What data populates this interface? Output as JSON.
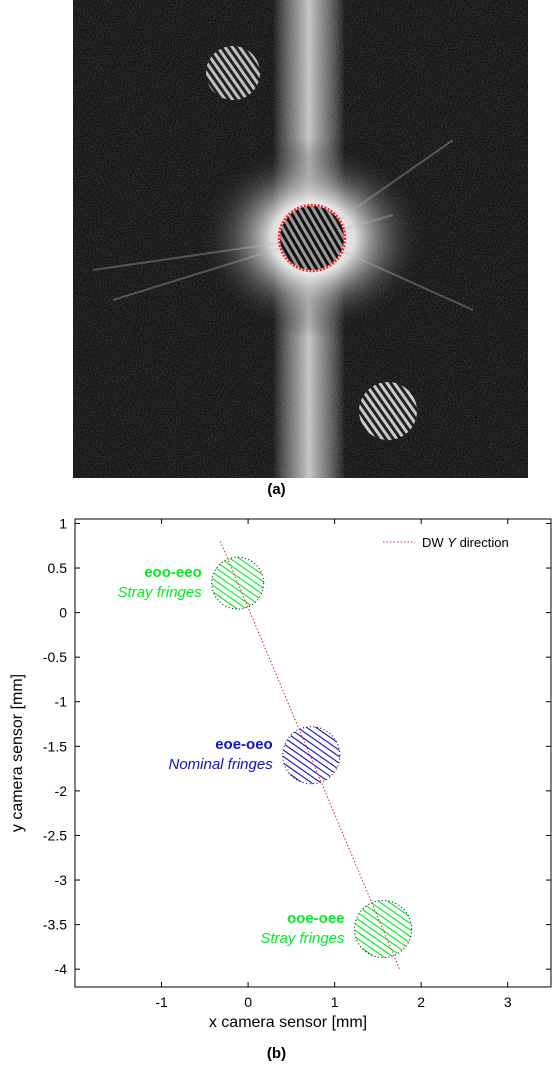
{
  "panel_a": {
    "label": "(a)"
  },
  "panel_b": {
    "label": "(b)"
  },
  "chart_data": {
    "type": "scatter",
    "xlabel": "x camera sensor [mm]",
    "ylabel": "y camera sensor [mm]",
    "xlim": [
      -2,
      3.5
    ],
    "ylim": [
      -4.2,
      1.05
    ],
    "xticks": [
      -1,
      0,
      1,
      2,
      3
    ],
    "yticks": [
      1,
      0.5,
      0,
      -0.5,
      -1,
      -1.5,
      -2,
      -2.5,
      -3,
      -3.5,
      -4
    ],
    "legend": {
      "position": "top-right",
      "entry_prefix": "DW ",
      "entry_italic": "Y",
      "entry_suffix": " direction",
      "color": "#e0202a"
    },
    "dw_line": {
      "x": [
        -0.32,
        1.75
      ],
      "y": [
        0.8,
        -4.0
      ]
    },
    "spots": [
      {
        "name": "eoo-eeo",
        "caption": "Stray fringes",
        "x": -0.12,
        "y": 0.33,
        "r": 0.3,
        "color": "#00ee22"
      },
      {
        "name": "eoe-oeo",
        "caption": "Nominal fringes",
        "x": 0.73,
        "y": -1.6,
        "r": 0.33,
        "color": "#1010cc"
      },
      {
        "name": "ooe-oee",
        "caption": "Stray fringes",
        "x": 1.56,
        "y": -3.55,
        "r": 0.33,
        "color": "#00ee22"
      }
    ],
    "grid": false
  }
}
